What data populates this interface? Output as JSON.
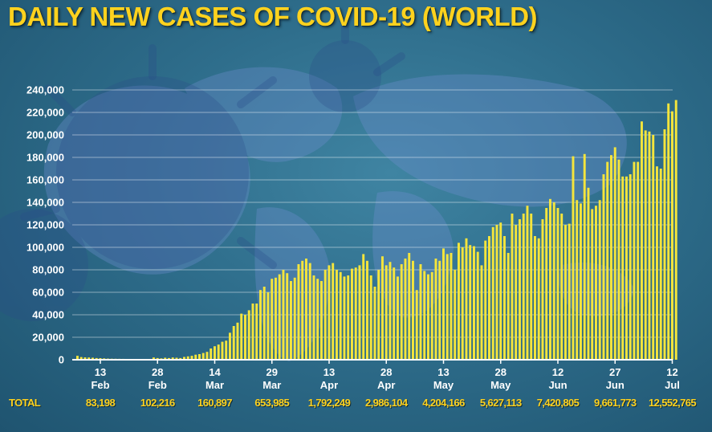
{
  "title": "DAILY NEW CASES OF COVID-19 (WORLD)",
  "colors": {
    "bar": "#f5e53c",
    "title": "#ffd21e",
    "background": "#2e6d8b"
  },
  "chart_data": {
    "type": "bar",
    "title": "DAILY NEW CASES OF COVID-19 (WORLD)",
    "xlabel": "",
    "ylabel": "",
    "ylim": [
      0,
      240000
    ],
    "grid": true,
    "yticks": [
      {
        "value": 0,
        "label": "0"
      },
      {
        "value": 20000,
        "label": "20,000"
      },
      {
        "value": 40000,
        "label": "40,000"
      },
      {
        "value": 60000,
        "label": "60,000"
      },
      {
        "value": 80000,
        "label": "80,000"
      },
      {
        "value": 100000,
        "label": "100,000"
      },
      {
        "value": 120000,
        "label": "120,000"
      },
      {
        "value": 140000,
        "label": "140,000"
      },
      {
        "value": 160000,
        "label": "160,000"
      },
      {
        "value": 180000,
        "label": "180,000"
      },
      {
        "value": 200000,
        "label": "200,000"
      },
      {
        "value": 220000,
        "label": "220,000"
      },
      {
        "value": 240000,
        "label": "240,000"
      }
    ],
    "xticks": [
      {
        "day": 0,
        "top": "13",
        "bottom": "Feb"
      },
      {
        "day": 15,
        "top": "28",
        "bottom": "Feb"
      },
      {
        "day": 30,
        "top": "14",
        "bottom": "Mar"
      },
      {
        "day": 45,
        "top": "29",
        "bottom": "Mar"
      },
      {
        "day": 60,
        "top": "13",
        "bottom": "Apr"
      },
      {
        "day": 75,
        "top": "28",
        "bottom": "Apr"
      },
      {
        "day": 90,
        "top": "13",
        "bottom": "May"
      },
      {
        "day": 105,
        "top": "28",
        "bottom": "May"
      },
      {
        "day": 120,
        "top": "12",
        "bottom": "Jun"
      },
      {
        "day": 135,
        "top": "27",
        "bottom": "Jun"
      },
      {
        "day": 150,
        "top": "12",
        "bottom": "Jul"
      }
    ],
    "values": [
      3500,
      2400,
      2100,
      2000,
      1800,
      1500,
      1400,
      1200,
      1000,
      900,
      850,
      800,
      750,
      700,
      650,
      600,
      500,
      450,
      400,
      350,
      2000,
      1500,
      1200,
      1800,
      1500,
      2000,
      1800,
      1500,
      2500,
      3000,
      3500,
      4500,
      5000,
      6000,
      7000,
      10000,
      12000,
      13500,
      16000,
      17000,
      24000,
      30000,
      33000,
      41000,
      40000,
      44000,
      50000,
      50000,
      62000,
      65000,
      60000,
      72000,
      73000,
      76000,
      80000,
      77000,
      70000,
      73000,
      85000,
      88000,
      90000,
      86000,
      75000,
      72000,
      70000,
      80000,
      84000,
      86000,
      80000,
      78000,
      74000,
      75000,
      81000,
      82000,
      84000,
      94000,
      88000,
      75000,
      65000,
      80000,
      92000,
      84000,
      87000,
      82000,
      74000,
      85000,
      90000,
      95000,
      88000,
      62000,
      85000,
      79000,
      76000,
      78000,
      90000,
      88000,
      99000,
      94000,
      95000,
      80000,
      104000,
      100000,
      108000,
      102000,
      101000,
      96000,
      84000,
      106000,
      110000,
      118000,
      120000,
      122000,
      110000,
      95000,
      130000,
      120000,
      125000,
      130000,
      137000,
      130000,
      110000,
      108000,
      125000,
      135000,
      143000,
      140000,
      135000,
      130000,
      120000,
      121000,
      181000,
      142000,
      139000,
      183000,
      153000,
      134000,
      137000,
      142000,
      165000,
      176000,
      182000,
      189000,
      178000,
      163000,
      163000,
      165000,
      176000,
      176000,
      212000,
      204000,
      203000,
      200000,
      172000,
      170000,
      205000,
      228000,
      221000,
      231000
    ]
  },
  "totals": {
    "label": "TOTAL",
    "values": [
      "83,198",
      "102,216",
      "160,897",
      "653,985",
      "1,792,249",
      "2,986,104",
      "4,204,166",
      "5,627,113",
      "7,420,805",
      "9,661,773",
      "12,552,765"
    ]
  }
}
